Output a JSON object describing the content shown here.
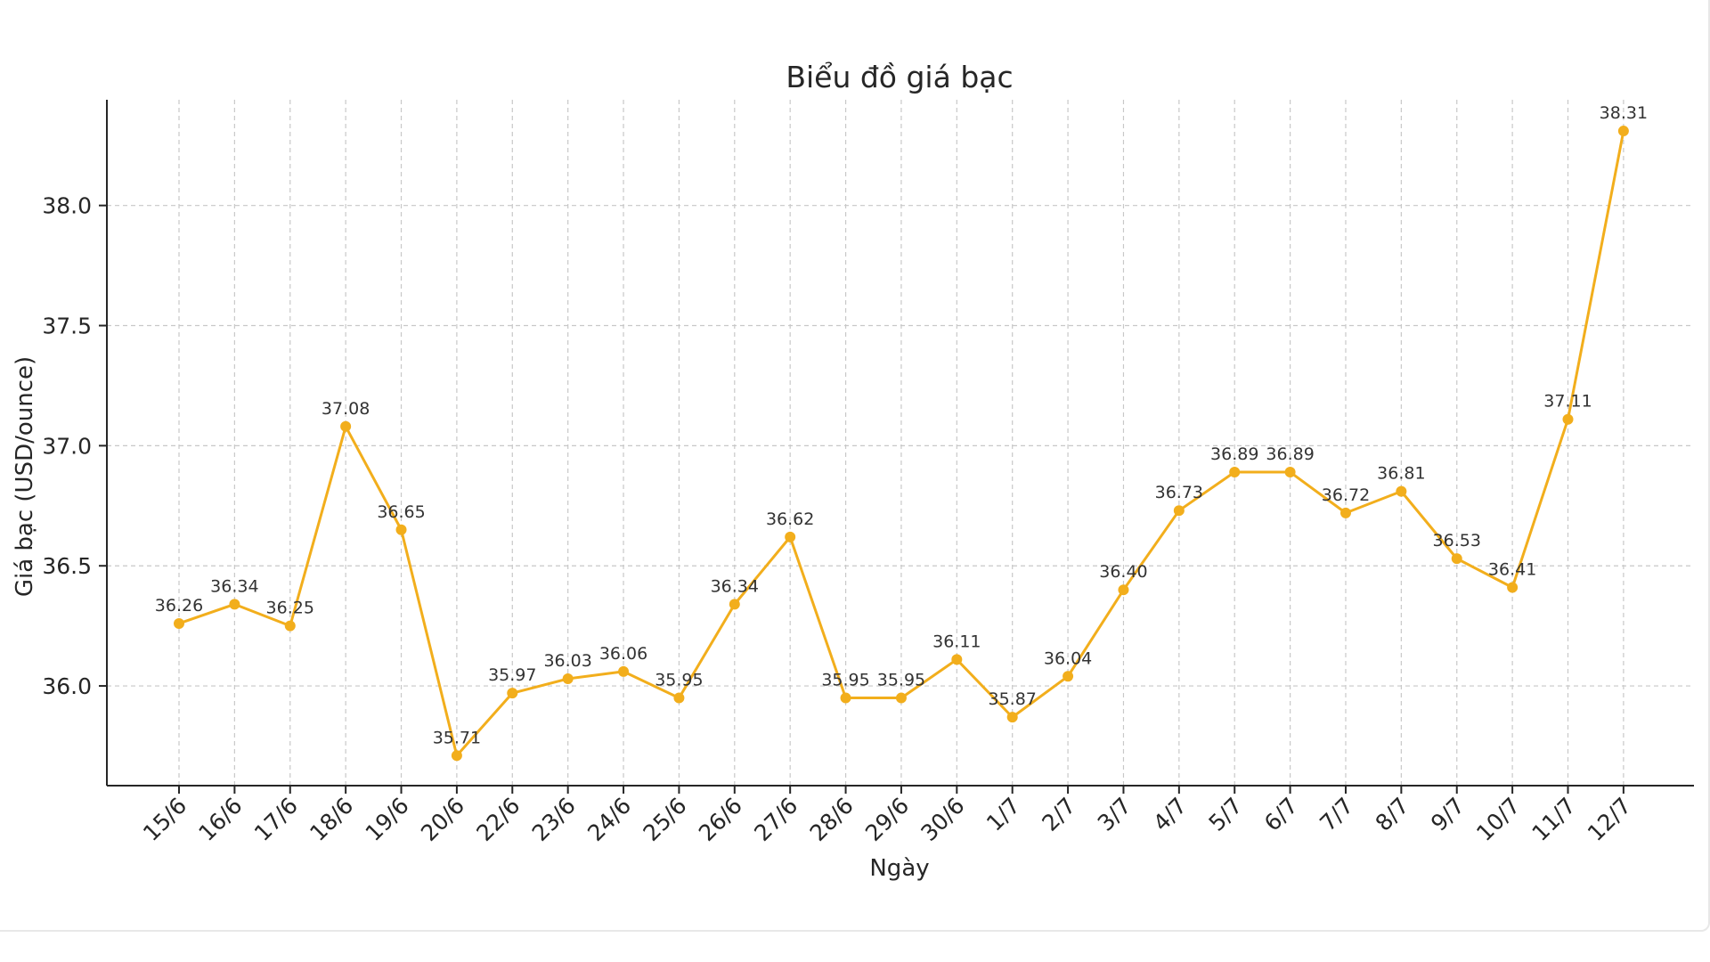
{
  "chart_data": {
    "type": "line",
    "title": "Biểu đồ giá bạc",
    "xlabel": "Ngày",
    "ylabel": "Giá bạc (USD/ounce)",
    "categories": [
      "15/6",
      "16/6",
      "17/6",
      "18/6",
      "19/6",
      "20/6",
      "22/6",
      "23/6",
      "24/6",
      "25/6",
      "26/6",
      "27/6",
      "28/6",
      "29/6",
      "30/6",
      "1/7",
      "2/7",
      "3/7",
      "4/7",
      "5/7",
      "6/7",
      "7/7",
      "8/7",
      "9/7",
      "10/7",
      "11/7",
      "12/7"
    ],
    "series": [
      {
        "values": [
          36.26,
          36.34,
          36.25,
          37.08,
          36.65,
          35.71,
          35.97,
          36.03,
          36.06,
          35.95,
          36.34,
          36.62,
          35.95,
          35.95,
          36.11,
          35.87,
          36.04,
          36.4,
          36.73,
          36.89,
          36.89,
          36.72,
          36.81,
          36.53,
          36.41,
          37.11,
          38.31
        ],
        "labels": [
          "36.26",
          "36.34",
          "36.25",
          "37.08",
          "36.65",
          "35.71",
          "35.97",
          "36.03",
          "36.06",
          "35.95",
          "36.34",
          "36.62",
          "35.95",
          "35.95",
          "36.11",
          "35.87",
          "36.04",
          "36.40",
          "36.73",
          "36.89",
          "36.89",
          "36.72",
          "36.81",
          "36.53",
          "36.41",
          "37.11",
          "38.31"
        ],
        "color": "#F2AE1C"
      }
    ],
    "yticks": [
      "36.0",
      "36.5",
      "37.0",
      "37.5",
      "38.0"
    ],
    "ylim": [
      35.585,
      38.44
    ],
    "grid": true
  }
}
